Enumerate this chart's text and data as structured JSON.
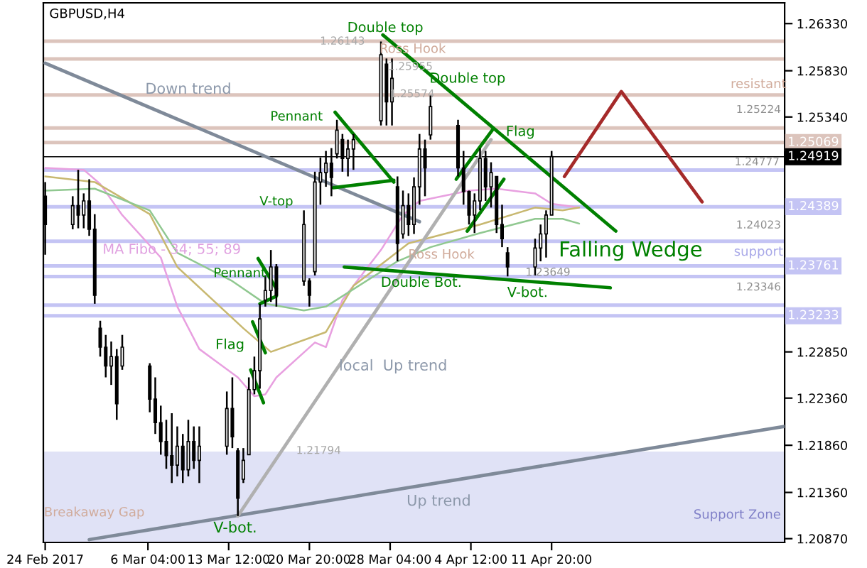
{
  "chart_data": {
    "type": "candlestick",
    "title": "GBPUSD,H4",
    "x": [
      "2017-02-24T20:00",
      "2017-02-27T08:00",
      "2017-02-27T20:00",
      "2017-02-28T08:00",
      "2017-02-28T20:00",
      "2017-03-01T08:00",
      "2017-03-01T20:00",
      "2017-03-02T08:00",
      "2017-03-02T20:00",
      "2017-03-03T08:00",
      "2017-03-03T20:00",
      "2017-03-06T08:00",
      "2017-03-06T20:00",
      "2017-03-07T08:00",
      "2017-03-07T20:00",
      "2017-03-08T08:00",
      "2017-03-08T20:00",
      "2017-03-09T08:00",
      "2017-03-09T20:00",
      "2017-03-10T08:00",
      "2017-03-10T20:00",
      "2017-03-13T08:00",
      "2017-03-13T20:00",
      "2017-03-14T08:00",
      "2017-03-14T20:00",
      "2017-03-15T08:00",
      "2017-03-15T20:00",
      "2017-03-16T08:00",
      "2017-03-16T20:00",
      "2017-03-17T08:00",
      "2017-03-17T20:00",
      "2017-03-20T08:00",
      "2017-03-20T20:00",
      "2017-03-21T08:00",
      "2017-03-21T20:00",
      "2017-03-22T08:00",
      "2017-03-22T20:00",
      "2017-03-23T08:00",
      "2017-03-23T20:00",
      "2017-03-24T08:00",
      "2017-03-24T20:00",
      "2017-03-27T08:00",
      "2017-03-27T20:00",
      "2017-03-28T08:00",
      "2017-03-28T20:00",
      "2017-03-29T08:00",
      "2017-03-29T20:00",
      "2017-03-30T08:00",
      "2017-03-30T20:00",
      "2017-03-31T08:00",
      "2017-03-31T20:00",
      "2017-04-03T08:00",
      "2017-04-03T20:00",
      "2017-04-04T08:00",
      "2017-04-04T20:00",
      "2017-04-05T08:00",
      "2017-04-05T20:00",
      "2017-04-06T08:00",
      "2017-04-06T20:00",
      "2017-04-07T08:00",
      "2017-04-07T20:00",
      "2017-04-10T08:00",
      "2017-04-10T20:00",
      "2017-04-11T08:00",
      "2017-04-11T20:00"
    ],
    "ohlc": [
      [
        1.245,
        1.2465,
        1.2388,
        1.242
      ],
      [
        1.242,
        1.245,
        1.2415,
        1.244
      ],
      [
        1.244,
        1.2478,
        1.2416,
        1.243
      ],
      [
        1.243,
        1.2453,
        1.2416,
        1.2445
      ],
      [
        1.2445,
        1.2468,
        1.2408,
        1.2415
      ],
      [
        1.2415,
        1.2431,
        1.2336,
        1.2345
      ],
      [
        1.231,
        1.2318,
        1.228,
        1.229
      ],
      [
        1.229,
        1.2303,
        1.2258,
        1.227
      ],
      [
        1.227,
        1.2296,
        1.225,
        1.228
      ],
      [
        1.228,
        1.2288,
        1.2213,
        1.223
      ],
      [
        1.227,
        1.2303,
        1.2266,
        1.229
      ],
      [
        1.227,
        1.2273,
        1.2221,
        1.2235
      ],
      [
        1.2235,
        1.2258,
        1.2198,
        1.221
      ],
      [
        1.221,
        1.2228,
        1.2176,
        1.219
      ],
      [
        1.219,
        1.2213,
        1.2161,
        1.2175
      ],
      [
        1.2175,
        1.222,
        1.2146,
        1.2165
      ],
      [
        1.2165,
        1.2206,
        1.2153,
        1.2185
      ],
      [
        1.2185,
        1.2198,
        1.2146,
        1.216
      ],
      [
        1.216,
        1.2213,
        1.2153,
        1.219
      ],
      [
        1.219,
        1.2206,
        1.2161,
        1.217
      ],
      [
        1.217,
        1.2206,
        1.2146,
        1.2185
      ],
      [
        1.2185,
        1.2243,
        1.2176,
        1.2225
      ],
      [
        1.2225,
        1.2258,
        1.2183,
        1.2195
      ],
      [
        1.218,
        1.2183,
        1.2111,
        1.213
      ],
      [
        1.215,
        1.2183,
        1.2146,
        1.217
      ],
      [
        1.2176,
        1.2258,
        1.2176,
        1.2245
      ],
      [
        1.2245,
        1.228,
        1.224,
        1.2265
      ],
      [
        1.2265,
        1.2336,
        1.2246,
        1.232
      ],
      [
        1.234,
        1.2366,
        1.2333,
        1.235
      ],
      [
        1.235,
        1.2393,
        1.2338,
        1.2375
      ],
      [
        1.2375,
        1.2378,
        1.2333,
        1.2345
      ],
      [
        1.236,
        1.2435,
        1.2355,
        1.242
      ],
      [
        1.236,
        1.2363,
        1.2333,
        1.2345
      ],
      [
        1.237,
        1.2476,
        1.2366,
        1.2465
      ],
      [
        1.2465,
        1.2491,
        1.2441,
        1.2475
      ],
      [
        1.2475,
        1.2498,
        1.246,
        1.2485
      ],
      [
        1.2485,
        1.2501,
        1.245,
        1.247
      ],
      [
        1.2495,
        1.2531,
        1.249,
        1.252
      ],
      [
        1.251,
        1.2516,
        1.2476,
        1.249
      ],
      [
        1.249,
        1.251,
        1.2471,
        1.25
      ],
      [
        1.25,
        1.2516,
        1.2478,
        1.251
      ],
      [
        1.253,
        1.2614,
        1.2525,
        1.26
      ],
      [
        1.259,
        1.2596,
        1.2525,
        1.255
      ],
      [
        1.255,
        1.2596,
        1.2525,
        1.2575
      ],
      [
        1.246,
        1.2471,
        1.2381,
        1.24
      ],
      [
        1.241,
        1.2456,
        1.2405,
        1.244
      ],
      [
        1.244,
        1.2453,
        1.2408,
        1.242
      ],
      [
        1.242,
        1.247,
        1.241,
        1.246
      ],
      [
        1.246,
        1.2516,
        1.2441,
        1.25
      ],
      [
        1.25,
        1.251,
        1.245,
        1.248
      ],
      [
        1.2515,
        1.2557,
        1.251,
        1.2545
      ],
      [
        1.2525,
        1.2531,
        1.2471,
        1.248
      ],
      [
        1.248,
        1.2498,
        1.2441,
        1.2455
      ],
      [
        1.2455,
        1.2456,
        1.242,
        1.243
      ],
      [
        1.243,
        1.2453,
        1.2411,
        1.2445
      ],
      [
        1.2445,
        1.2501,
        1.2435,
        1.249
      ],
      [
        1.249,
        1.2498,
        1.2445,
        1.246
      ],
      [
        1.246,
        1.2486,
        1.2438,
        1.2475
      ],
      [
        1.2471,
        1.2471,
        1.2411,
        1.242
      ],
      [
        1.242,
        1.2441,
        1.2396,
        1.2405
      ],
      [
        1.239,
        1.2396,
        1.2365,
        1.2375
      ],
      [
        1.2375,
        1.2405,
        1.2366,
        1.2395
      ],
      [
        1.2395,
        1.242,
        1.2381,
        1.241
      ],
      [
        1.241,
        1.2435,
        1.2385,
        1.243
      ],
      [
        1.243,
        1.2498,
        1.243,
        1.2492
      ]
    ],
    "color": "#000000",
    "series": [
      {
        "type": "line",
        "color": "#e8a0e0",
        "x": [
          "2017-02-24T20:00",
          "2017-02-28T08:00",
          "2017-03-01T20:00",
          "2017-03-03T20:00",
          "2017-03-07T08:00",
          "2017-03-08T20:00",
          "2017-03-10T20:00",
          "2017-03-14T08:00",
          "2017-03-15T20:00",
          "2017-03-16T20:00",
          "2017-03-17T20:00",
          "2017-03-21T08:00",
          "2017-03-22T08:00",
          "2017-03-23T20:00",
          "2017-03-27T08:00",
          "2017-03-29T08:00",
          "2017-03-30T20:00",
          "2017-04-04T08:00",
          "2017-04-06T20:00",
          "2017-04-10T08:00",
          "2017-04-11T20:00",
          "2017-04-14T08:00"
        ],
        "values": [
          1.248,
          1.2478,
          1.2463,
          1.243,
          1.2385,
          1.2333,
          1.2288,
          1.2258,
          1.2238,
          1.224,
          1.2258,
          1.2295,
          1.229,
          1.234,
          1.2393,
          1.243,
          1.2445,
          1.2456,
          1.2458,
          1.2453,
          1.2442,
          1.2438
        ]
      },
      {
        "type": "line",
        "color": "#c8b870",
        "x": [
          "2017-02-24T20:00",
          "2017-03-01T08:00",
          "2017-03-06T08:00",
          "2017-03-08T20:00",
          "2017-03-14T20:00",
          "2017-03-17T08:00",
          "2017-03-22T08:00",
          "2017-03-24T20:00",
          "2017-03-29T20:00",
          "2017-04-05T08:00",
          "2017-04-10T08:00",
          "2017-04-12T20:00",
          "2017-04-14T08:00"
        ],
        "values": [
          1.2471,
          1.2465,
          1.2431,
          1.2375,
          1.231,
          1.2285,
          1.2306,
          1.2355,
          1.24,
          1.242,
          1.2438,
          1.2435,
          1.2438
        ]
      },
      {
        "type": "line",
        "color": "#90c890",
        "x": [
          "2017-02-24T20:00",
          "2017-03-01T08:00",
          "2017-03-06T08:00",
          "2017-03-08T20:00",
          "2017-03-13T20:00",
          "2017-03-16T20:00",
          "2017-03-20T08:00",
          "2017-03-22T08:00",
          "2017-03-28T20:00",
          "2017-03-31T20:00",
          "2017-04-05T08:00",
          "2017-04-10T08:00",
          "2017-04-12T20:00",
          "2017-04-14T08:00"
        ],
        "values": [
          1.2456,
          1.2458,
          1.2435,
          1.239,
          1.236,
          1.2336,
          1.2329,
          1.2333,
          1.2381,
          1.2396,
          1.2411,
          1.2426,
          1.2426,
          1.2421
        ]
      },
      {
        "type": "line",
        "color": "#7f8a99",
        "x": [
          "2017-02-24T20:00",
          "2017-03-30T20:00"
        ],
        "values": [
          1.2591,
          1.2423
        ]
      },
      {
        "type": "line",
        "color": "#7f8a99",
        "x": [
          "2017-02-28T20:00",
          "2017-05-03T00:00"
        ],
        "values": [
          1.2086,
          1.2206
        ]
      },
      {
        "type": "line",
        "color": "#b0b0b0",
        "x": [
          "2017-03-14T08:00",
          "2017-04-06T08:00"
        ],
        "values": [
          1.2111,
          1.251
        ]
      },
      {
        "type": "line",
        "color": "#008000",
        "x": [
          "2017-03-15T12:00",
          "2017-03-16T16:00"
        ],
        "values": [
          1.2266,
          1.2231
        ]
      },
      {
        "type": "line",
        "color": "#008000",
        "x": [
          "2017-03-15T16:00",
          "2017-03-16T20:00"
        ],
        "values": [
          1.2317,
          1.2284
        ]
      },
      {
        "type": "line",
        "color": "#008000",
        "x": [
          "2017-03-16T04:00",
          "2017-03-17T20:00"
        ],
        "values": [
          1.2384,
          1.2352
        ]
      },
      {
        "type": "line",
        "color": "#008000",
        "x": [
          "2017-03-16T08:00",
          "2017-03-17T20:00"
        ],
        "values": [
          1.2336,
          1.2344
        ]
      },
      {
        "type": "line",
        "color": "#008000",
        "x": [
          "2017-03-23T04:00",
          "2017-03-28T12:00"
        ],
        "values": [
          1.2539,
          1.2465
        ]
      },
      {
        "type": "line",
        "color": "#008000",
        "x": [
          "2017-03-23T00:00",
          "2017-03-28T12:00"
        ],
        "values": [
          1.2459,
          1.2467
        ]
      },
      {
        "type": "line",
        "color": "#008000",
        "x": [
          "2017-03-27T12:00",
          "2017-04-17T16:00"
        ],
        "values": [
          1.2621,
          1.2413
        ]
      },
      {
        "type": "line",
        "color": "#008000",
        "x": [
          "2017-04-03T04:00",
          "2017-04-06T12:00"
        ],
        "values": [
          1.2468,
          1.2521
        ]
      },
      {
        "type": "line",
        "color": "#008000",
        "x": [
          "2017-04-04T04:00",
          "2017-04-07T12:00"
        ],
        "values": [
          1.2413,
          1.2468
        ]
      },
      {
        "type": "line",
        "color": "#008000",
        "x": [
          "2017-03-24T00:00",
          "2017-04-17T04:00"
        ],
        "values": [
          1.2375,
          1.2353
        ]
      },
      {
        "type": "line",
        "color": "#a52a2a",
        "x": [
          "2017-04-13T00:00",
          "2017-04-18T04:00",
          "2017-04-25T12:00"
        ],
        "values": [
          1.2471,
          1.2561,
          1.2444
        ]
      }
    ],
    "xlim": [
      "2017-02-24T16:00",
      "2017-05-03T00:00"
    ],
    "xticks": [
      {
        "value": "2017-02-24T20:00",
        "label": "24 Feb 2017"
      },
      {
        "value": "2017-03-06T04:00",
        "label": "6 Mar 04:00"
      },
      {
        "value": "2017-03-13T12:00",
        "label": "13 Mar 12:00"
      },
      {
        "value": "2017-03-20T20:00",
        "label": "20 Mar 20:00"
      },
      {
        "value": "2017-03-28T04:00",
        "label": "28 Mar 04:00"
      },
      {
        "value": "2017-04-04T12:00",
        "label": "4 Apr 12:00"
      },
      {
        "value": "2017-04-11T20:00",
        "label": "11 Apr 20:00"
      }
    ],
    "ylim": [
      1.2083,
      1.2655
    ],
    "yticks": [
      {
        "value": 1.2633,
        "label": "1.26330"
      },
      {
        "value": 1.2583,
        "label": "1.25830"
      },
      {
        "value": 1.2534,
        "label": "1.25340"
      },
      {
        "value": 1.2285,
        "label": "1.22850"
      },
      {
        "value": 1.2236,
        "label": "1.22360"
      },
      {
        "value": 1.2186,
        "label": "1.21860"
      },
      {
        "value": 1.2136,
        "label": "1.21360"
      },
      {
        "value": 1.2087,
        "label": "1.20870"
      }
    ],
    "ref_lines": [
      {
        "axis": "y",
        "value": 1.26143,
        "color": "#dcc4bc"
      },
      {
        "axis": "y",
        "value": 1.25955,
        "color": "#dcc4bc"
      },
      {
        "axis": "y",
        "value": 1.25574,
        "color": "#dcc4bc"
      },
      {
        "axis": "y",
        "value": 1.25224,
        "color": "#dcc4bc"
      },
      {
        "axis": "y",
        "value": 1.25069,
        "color": "#dcc4bc",
        "label": "1.25069"
      },
      {
        "axis": "y",
        "value": 1.24919,
        "color": "#000000",
        "label": "1.24919"
      },
      {
        "axis": "y",
        "value": 1.24777,
        "color": "#c4c4f4"
      },
      {
        "axis": "y",
        "value": 1.24389,
        "color": "#c4c4f4",
        "label": "1.24389"
      },
      {
        "axis": "y",
        "value": 1.24023,
        "color": "#c4c4f4"
      },
      {
        "axis": "y",
        "value": 1.23761,
        "color": "#c4c4f4",
        "label": "1.23761"
      },
      {
        "axis": "y",
        "value": 1.23649,
        "color": "#c4c4f4"
      },
      {
        "axis": "y",
        "value": 1.23346,
        "color": "#c4c4f4"
      },
      {
        "axis": "y",
        "value": 1.23233,
        "color": "#c4c4f4",
        "label": "1.23233"
      }
    ],
    "bands": [
      {
        "axis": "y",
        "from": 1.2083,
        "to": 1.21794,
        "label": "Support Zone",
        "color": "#e0e2f6"
      }
    ],
    "annotations": [
      {
        "text": "1.26143",
        "x": "2017-03-23T20:00",
        "y": 1.2614
      },
      {
        "text": "1.25955",
        "x": "2017-03-30T00:00",
        "y": 1.2587
      },
      {
        "text": "1.25574",
        "x": "2017-03-30T04:00",
        "y": 1.2558
      },
      "1.25224",
      {
        "text": "1.24777",
        "x": "2017-04-30T12:00",
        "y": 1.2486
      },
      "1.24023",
      {
        "text": "1.23649",
        "x": "2017-04-11T12:00",
        "y": 1.2369
      },
      "1.23346",
      {
        "text": "1.21794",
        "x": "2017-03-21T16:00",
        "y": 1.218
      },
      "Double top",
      "Double top",
      {
        "text": "Flag",
        "x": "2017-04-09T00:00",
        "y": 1.2518
      },
      {
        "text": "Double Bot.",
        "x": "2017-03-31T00:00",
        "y": 1.2358
      },
      "V-bot.",
      "Pennant",
      {
        "text": "V-top",
        "x": "2017-03-17T20:00",
        "y": 1.2444
      },
      {
        "text": "Pennant",
        "x": "2017-03-14T12:00",
        "y": 1.2368
      },
      "Flag",
      "V-bot.",
      "Falling Wedge",
      "Ross Hook",
      "Ross Hook",
      "resistant",
      "Breakaway Gap",
      {
        "text": "Down trend",
        "x": "2017-03-09T20:00",
        "y": 1.2563
      },
      "local  Up trend",
      "Up trend",
      {
        "text": "MA Fibo - 34; 55; 89",
        "x": "2017-03-08T08:00",
        "y": 1.2393
      },
      "support"
    ]
  }
}
